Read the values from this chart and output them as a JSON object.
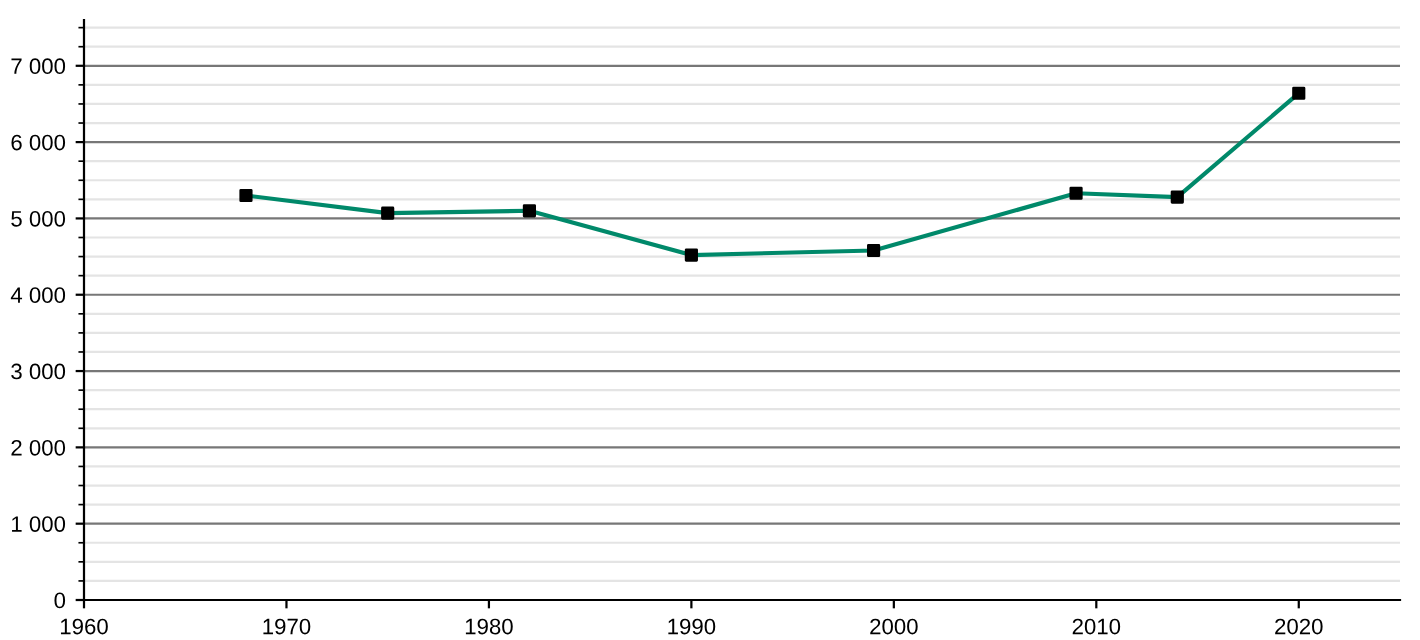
{
  "chart_data": {
    "type": "line",
    "x": [
      1968,
      1975,
      1982,
      1990,
      1999,
      2009,
      2014,
      2020
    ],
    "series": [
      {
        "color": "#00896a",
        "colors": [
          "#000000",
          "#000000",
          "#000000",
          "#000000",
          "#000000",
          "#000000",
          "#000000",
          "#000000"
        ],
        "values": [
          5300,
          5070,
          5100,
          4520,
          4580,
          5330,
          5280,
          6640
        ]
      }
    ],
    "marker": "square",
    "line_style": "solid",
    "grid": "y",
    "legend": false,
    "xlim": [
      1960,
      2025
    ],
    "xticks": [
      1960,
      1970,
      1980,
      1990,
      2000,
      2010,
      2020
    ],
    "ylim": [
      0,
      7600
    ],
    "yticks": [
      0,
      {
        "value": 250,
        "label": null
      },
      {
        "value": 500,
        "label": null
      },
      {
        "value": 750,
        "label": null
      },
      {
        "value": 1000,
        "label": "1 000"
      },
      {
        "value": 1250,
        "label": null
      },
      {
        "value": 1500,
        "label": null
      },
      {
        "value": 1750,
        "label": null
      },
      {
        "value": 2000,
        "label": "2 000"
      },
      {
        "value": 2250,
        "label": null
      },
      {
        "value": 2500,
        "label": null
      },
      {
        "value": 2750,
        "label": null
      },
      {
        "value": 3000,
        "label": "3 000"
      },
      {
        "value": 3250,
        "label": null
      },
      {
        "value": 3500,
        "label": null
      },
      {
        "value": 3750,
        "label": null
      },
      {
        "value": 4000,
        "label": "4 000"
      },
      {
        "value": 4250,
        "label": null
      },
      {
        "value": 4500,
        "label": null
      },
      {
        "value": 4750,
        "label": null
      },
      {
        "value": 5000,
        "label": "5 000"
      },
      {
        "value": 5250,
        "label": null
      },
      {
        "value": 5500,
        "label": null
      },
      {
        "value": 5750,
        "label": null
      },
      {
        "value": 6000,
        "label": "6 000"
      },
      {
        "value": 6250,
        "label": null
      },
      {
        "value": 6500,
        "label": null
      },
      {
        "value": 6750,
        "label": null
      },
      {
        "value": 7000,
        "label": "7 000"
      },
      {
        "value": 7250,
        "label": null
      },
      {
        "value": 7500,
        "label": null
      }
    ]
  }
}
